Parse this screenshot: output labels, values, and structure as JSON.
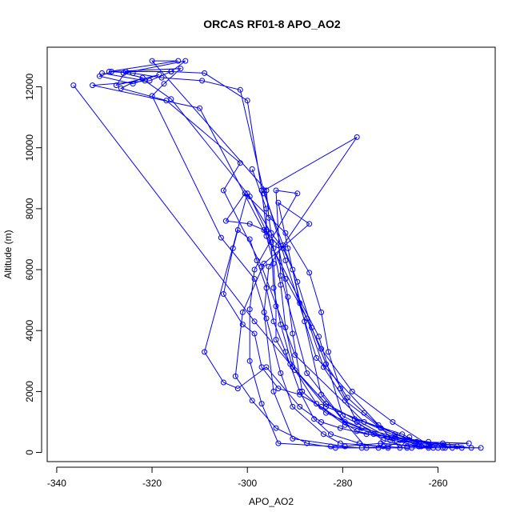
{
  "chart_data": {
    "type": "line",
    "title": "ORCAS RF01-8 APO_AO2",
    "xlabel": "APO_AO2",
    "ylabel": "Altitude (m)",
    "xlim": [
      -342,
      -248
    ],
    "ylim": [
      -300,
      13300
    ],
    "x_ticks": [
      -340,
      -320,
      -300,
      -280,
      -260
    ],
    "y_ticks": [
      0,
      2000,
      4000,
      6000,
      8000,
      10000,
      12000
    ],
    "x_tick_labels": [
      "-340",
      "-320",
      "-300",
      "-280",
      "-260"
    ],
    "y_tick_labels": [
      "0",
      "2000",
      "4000",
      "6000",
      "8000",
      "10000",
      "12000"
    ],
    "grid": false,
    "color": "#0000ff",
    "series": [
      {
        "name": "",
        "points": [
          [
            -336.5,
            12050
          ],
          [
            -298.5,
            4300
          ],
          [
            -283.5,
            1500
          ],
          [
            -264.5,
            350
          ],
          [
            -253.5,
            300
          ],
          [
            -264,
            200
          ],
          [
            -275.5,
            1000
          ],
          [
            -290,
            3200
          ],
          [
            -297,
            6100
          ],
          [
            -305,
            8600
          ],
          [
            -301.5,
            9500
          ],
          [
            -317,
            11550
          ],
          [
            -326.5,
            11950
          ],
          [
            -322,
            12300
          ],
          [
            -326,
            12450
          ],
          [
            -313,
            12850
          ],
          [
            -316,
            12500
          ],
          [
            -320.5,
            12200
          ],
          [
            -332.5,
            12050
          ],
          [
            -310,
            11300
          ],
          [
            -285,
            3800
          ],
          [
            -280,
            1200
          ],
          [
            -270,
            400
          ],
          [
            -255,
            150
          ],
          [
            -259,
            300
          ],
          [
            -262,
            200
          ],
          [
            -273.5,
            600
          ],
          [
            -279.5,
            1000
          ],
          [
            -287.5,
            2600
          ],
          [
            -293,
            5800
          ],
          [
            -294,
            8600
          ],
          [
            -289.5,
            8500
          ],
          [
            -298.5,
            6000
          ],
          [
            -299.5,
            4700
          ],
          [
            -299.5,
            3000
          ],
          [
            -297,
            1600
          ],
          [
            -293.5,
            300
          ],
          [
            -282.5,
            200
          ],
          [
            -276,
            150
          ],
          [
            -270.5,
            200
          ],
          [
            -266,
            500
          ],
          [
            -268,
            150
          ],
          [
            -285.5,
            3100
          ],
          [
            -292,
            6300
          ],
          [
            -296.5,
            8600
          ],
          [
            -277,
            10350
          ],
          [
            -295.5,
            6100
          ],
          [
            -296.5,
            4600
          ],
          [
            -294.5,
            2000
          ],
          [
            -290.5,
            450
          ],
          [
            -279.5,
            200
          ],
          [
            -272,
            300
          ],
          [
            -263.5,
            200
          ],
          [
            -261,
            150
          ],
          [
            -269.5,
            1000
          ],
          [
            -278,
            2000
          ],
          [
            -284.5,
            3400
          ],
          [
            -289,
            4900
          ],
          [
            -291.5,
            6700
          ],
          [
            -293.5,
            8200
          ],
          [
            -287,
            7500
          ],
          [
            -296.5,
            6200
          ],
          [
            -301,
            4600
          ],
          [
            -302.5,
            2500
          ],
          [
            -299,
            1700
          ],
          [
            -294,
            800
          ],
          [
            -287.5,
            300
          ],
          [
            -281.5,
            150
          ],
          [
            -272.5,
            150
          ],
          [
            -265.5,
            150
          ],
          [
            -259,
            150
          ],
          [
            -251,
            150
          ],
          [
            -264,
            200
          ],
          [
            -277,
            700
          ],
          [
            -284.5,
            1500
          ],
          [
            -289,
            1900
          ],
          [
            -293.5,
            2100
          ],
          [
            -297,
            2800
          ],
          [
            -298.5,
            3900
          ],
          [
            -301,
            4200
          ],
          [
            -305,
            5200
          ],
          [
            -303,
            6700
          ],
          [
            -302,
            7300
          ],
          [
            -299.5,
            7000
          ],
          [
            -298,
            6300
          ],
          [
            -296,
            5400
          ],
          [
            -294.5,
            4300
          ],
          [
            -292,
            3300
          ],
          [
            -289,
            2000
          ],
          [
            -286,
            1100
          ],
          [
            -282.5,
            600
          ],
          [
            -276.5,
            300
          ],
          [
            -270.5,
            150
          ],
          [
            -262,
            150
          ],
          [
            -257,
            150
          ],
          [
            -266,
            400
          ],
          [
            -276,
            800
          ],
          [
            -283.5,
            1300
          ],
          [
            -288.5,
            2000
          ],
          [
            -290.5,
            3900
          ],
          [
            -291.5,
            5100
          ],
          [
            -293.5,
            6800
          ],
          [
            -296.5,
            7300
          ],
          [
            -299.5,
            7500
          ],
          [
            -304.5,
            7600
          ],
          [
            -300.5,
            8500
          ],
          [
            -292,
            7200
          ],
          [
            -287,
            5900
          ],
          [
            -284.5,
            4600
          ],
          [
            -283,
            3300
          ],
          [
            -280.5,
            2100
          ],
          [
            -277,
            1000
          ],
          [
            -271.5,
            400
          ],
          [
            -266.5,
            200
          ],
          [
            -260,
            150
          ],
          [
            -258.5,
            150
          ],
          [
            -275,
            150
          ],
          [
            -284.5,
            1900
          ],
          [
            -288,
            4300
          ],
          [
            -290.5,
            6000
          ],
          [
            -292.5,
            6700
          ],
          [
            -295,
            7200
          ],
          [
            -300,
            8500
          ],
          [
            -309,
            3300
          ],
          [
            -305,
            2300
          ],
          [
            -302,
            2100
          ],
          [
            -296,
            2800
          ],
          [
            -289,
            1500
          ],
          [
            -284.5,
            1000
          ],
          [
            -280.5,
            800
          ],
          [
            -275,
            600
          ],
          [
            -269,
            500
          ],
          [
            -262,
            350
          ],
          [
            -256,
            200
          ],
          [
            -253,
            150
          ],
          [
            -270.5,
            500
          ],
          [
            -283.5,
            1600
          ],
          [
            -291,
            2900
          ],
          [
            -294,
            3700
          ],
          [
            -294,
            4800
          ],
          [
            -294.5,
            6200
          ],
          [
            -296,
            7100
          ],
          [
            -296,
            8000
          ],
          [
            -299,
            9300
          ]
        ]
      },
      {
        "name": "",
        "points": [
          [
            -330.5,
            12450
          ],
          [
            -321.5,
            12200
          ],
          [
            -316,
            11600
          ],
          [
            -299.5,
            8400
          ],
          [
            -296,
            7250
          ],
          [
            -292,
            5700
          ],
          [
            -287.5,
            4400
          ],
          [
            -284,
            2800
          ],
          [
            -279.5,
            1700
          ],
          [
            -272,
            800
          ],
          [
            -264.5,
            350
          ],
          [
            -258,
            250
          ],
          [
            -268,
            400
          ],
          [
            -279.5,
            900
          ],
          [
            -285.5,
            1600
          ],
          [
            -290,
            2700
          ],
          [
            -292,
            4100
          ],
          [
            -293,
            5500
          ],
          [
            -294.5,
            6700
          ],
          [
            -295.5,
            7700
          ],
          [
            -296,
            8600
          ],
          [
            -320,
            12850
          ],
          [
            -314.5,
            12850
          ],
          [
            -329,
            12500
          ],
          [
            -324,
            12450
          ],
          [
            -318,
            12300
          ],
          [
            -309.5,
            12200
          ],
          [
            -301.5,
            11900
          ],
          [
            -296.5,
            8500
          ],
          [
            -292.5,
            6800
          ],
          [
            -289.5,
            5600
          ],
          [
            -286.5,
            4100
          ],
          [
            -283.5,
            2900
          ],
          [
            -279,
            1800
          ],
          [
            -275.5,
            1300
          ],
          [
            -272.5,
            900
          ],
          [
            -269,
            600
          ],
          [
            -264,
            300
          ],
          [
            -267.5,
            600
          ],
          [
            -277.5,
            1100
          ],
          [
            -283.5,
            1600
          ],
          [
            -290.5,
            2800
          ],
          [
            -293,
            4200
          ],
          [
            -294.5,
            5400
          ],
          [
            -295,
            6900
          ],
          [
            -296,
            7300
          ],
          [
            -297,
            8600
          ],
          [
            -300,
            11550
          ],
          [
            -309,
            12450
          ],
          [
            -316,
            12500
          ],
          [
            -325.5,
            12500
          ],
          [
            -327.5,
            12050
          ],
          [
            -318.5,
            12400
          ],
          [
            -324,
            12100
          ],
          [
            -331,
            12350
          ],
          [
            -328.5,
            12500
          ],
          [
            -314,
            12600
          ],
          [
            -317.5,
            12100
          ],
          [
            -320,
            11700
          ],
          [
            -305.5,
            7050
          ],
          [
            -298.5,
            5700
          ],
          [
            -296,
            4400
          ],
          [
            -293,
            2600
          ],
          [
            -290.5,
            1500
          ],
          [
            -284,
            600
          ],
          [
            -280.5,
            300
          ],
          [
            -271.5,
            200
          ],
          [
            -266.5,
            150
          ]
        ]
      }
    ]
  }
}
